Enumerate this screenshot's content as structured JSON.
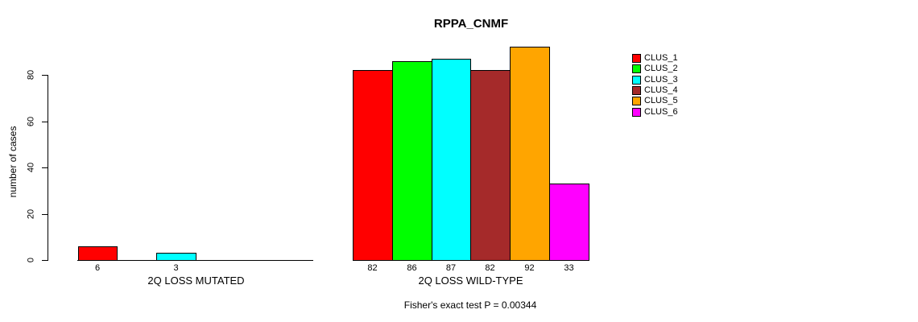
{
  "chart_data": {
    "type": "bar",
    "title": "RPPA_CNMF",
    "ylabel": "number of cases",
    "yticks": [
      0,
      20,
      40,
      60,
      80
    ],
    "ylim": [
      0,
      92
    ],
    "grid": false,
    "legend_position": "right",
    "clusters": [
      {
        "name": "CLUS_1",
        "color": "#FF0000"
      },
      {
        "name": "CLUS_2",
        "color": "#00FF00"
      },
      {
        "name": "CLUS_3",
        "color": "#00FFFF"
      },
      {
        "name": "CLUS_4",
        "color": "#A52A2A"
      },
      {
        "name": "CLUS_5",
        "color": "#FFA500"
      },
      {
        "name": "CLUS_6",
        "color": "#FF00FF"
      }
    ],
    "groups": [
      {
        "label": "2Q LOSS MUTATED",
        "values": [
          6,
          0,
          3,
          0,
          0,
          0
        ]
      },
      {
        "label": "2Q LOSS WILD-TYPE",
        "values": [
          82,
          86,
          87,
          82,
          92,
          33
        ]
      }
    ],
    "footer": "Fisher's exact test P = 0.00344",
    "text_color": "#000000",
    "background_color": "#FFFFFF"
  }
}
